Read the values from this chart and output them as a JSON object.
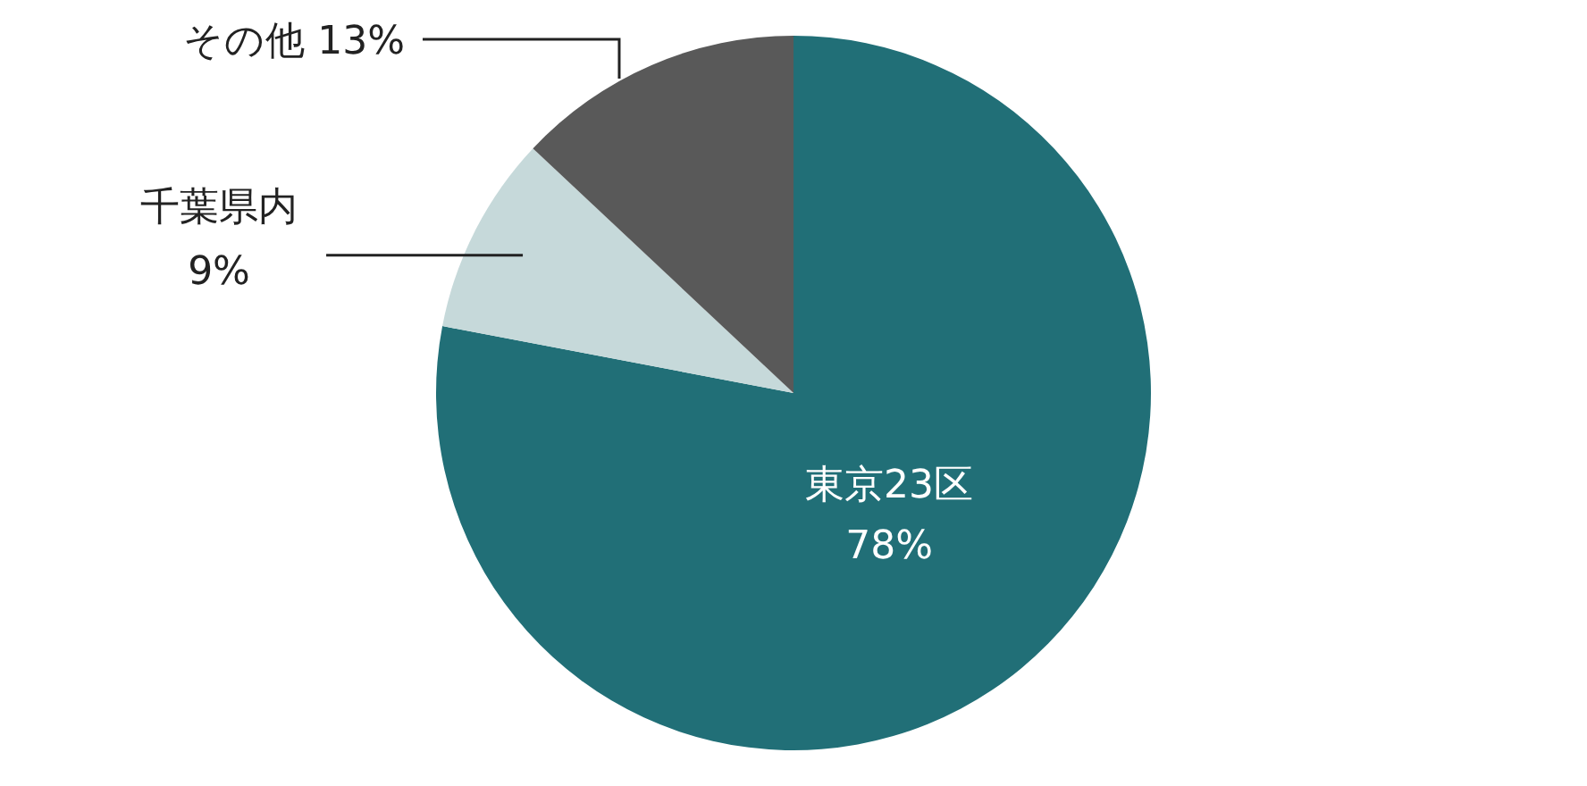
{
  "chart_data": {
    "type": "pie",
    "categories": [
      "東京23区",
      "千葉県内",
      "その他"
    ],
    "values": [
      78,
      9,
      13
    ],
    "colors": [
      "#216f77",
      "#c6d9da",
      "#595959"
    ],
    "value_labels": [
      "78%",
      "9%",
      "13%"
    ]
  }
}
